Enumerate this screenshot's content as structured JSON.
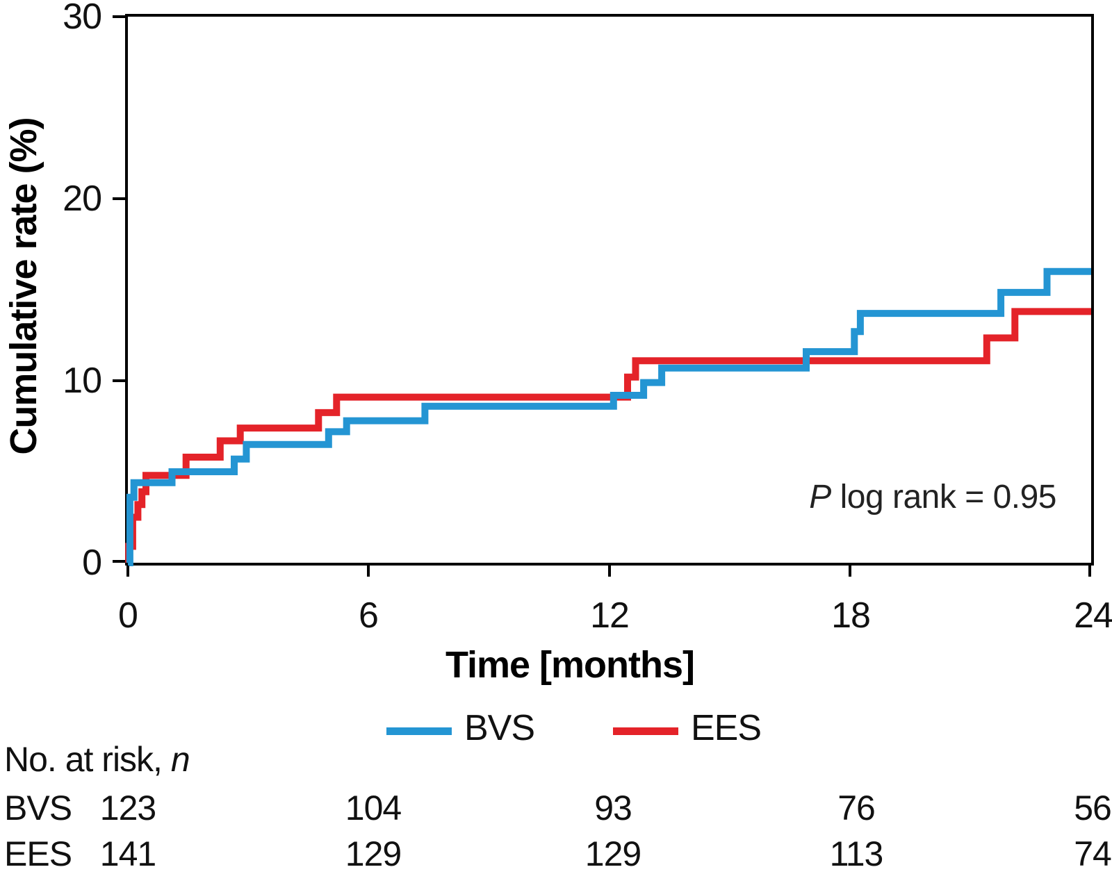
{
  "chart_data": {
    "type": "line",
    "subtype": "kaplan-meier-step",
    "xlabel": "Time [months]",
    "ylabel": "Cumulative rate (%)",
    "x_range": [
      0,
      24
    ],
    "y_range": [
      0,
      30
    ],
    "x_ticks": [
      "0",
      "6",
      "12",
      "18",
      "24"
    ],
    "y_ticks_top_to_bottom": [
      "30",
      "20",
      "10",
      "0"
    ],
    "grid": "off",
    "legend_position": "bottom-center",
    "annotation": {
      "prefix_italic": "P",
      "text": " log rank = 0.95"
    },
    "series": [
      {
        "name": "EES",
        "color": "#e42329",
        "steps": [
          {
            "t": 0.02,
            "rate": 0.9
          },
          {
            "t": 0.12,
            "rate": 2.5
          },
          {
            "t": 0.25,
            "rate": 3.2
          },
          {
            "t": 0.35,
            "rate": 3.9
          },
          {
            "t": 0.45,
            "rate": 4.8
          },
          {
            "t": 1.45,
            "rate": 5.8
          },
          {
            "t": 2.3,
            "rate": 6.7
          },
          {
            "t": 2.8,
            "rate": 7.4
          },
          {
            "t": 4.75,
            "rate": 8.25
          },
          {
            "t": 5.2,
            "rate": 9.1
          },
          {
            "t": 12.45,
            "rate": 10.2
          },
          {
            "t": 12.65,
            "rate": 11.1
          },
          {
            "t": 21.4,
            "rate": 12.35
          },
          {
            "t": 22.1,
            "rate": 13.8
          }
        ],
        "final_rate": 13.8
      },
      {
        "name": "BVS",
        "color": "#2495d3",
        "steps": [
          {
            "t": 0.05,
            "rate": 3.6
          },
          {
            "t": 0.15,
            "rate": 4.4
          },
          {
            "t": 1.1,
            "rate": 5.0
          },
          {
            "t": 2.65,
            "rate": 5.7
          },
          {
            "t": 2.95,
            "rate": 6.5
          },
          {
            "t": 5.0,
            "rate": 7.2
          },
          {
            "t": 5.45,
            "rate": 7.8
          },
          {
            "t": 7.4,
            "rate": 8.6
          },
          {
            "t": 12.1,
            "rate": 9.2
          },
          {
            "t": 12.85,
            "rate": 9.9
          },
          {
            "t": 13.3,
            "rate": 10.7
          },
          {
            "t": 16.9,
            "rate": 11.6
          },
          {
            "t": 18.1,
            "rate": 12.7
          },
          {
            "t": 18.25,
            "rate": 13.7
          },
          {
            "t": 21.75,
            "rate": 14.85
          },
          {
            "t": 22.9,
            "rate": 16.0
          }
        ],
        "final_rate": 16.0
      }
    ]
  },
  "legend": {
    "items": [
      {
        "key": "BVS",
        "label": "BVS",
        "color": "#2495d3"
      },
      {
        "key": "EES",
        "label": "EES",
        "color": "#e42329"
      }
    ]
  },
  "risk_table": {
    "title_prefix": "No. at risk, ",
    "title_italic": "n",
    "time_points": [
      "0",
      "6",
      "12",
      "18",
      "24"
    ],
    "rows": [
      {
        "label": "BVS",
        "values": [
          "123",
          "104",
          "93",
          "76",
          "56"
        ]
      },
      {
        "label": "EES",
        "values": [
          "141",
          "129",
          "129",
          "113",
          "74"
        ]
      }
    ]
  }
}
